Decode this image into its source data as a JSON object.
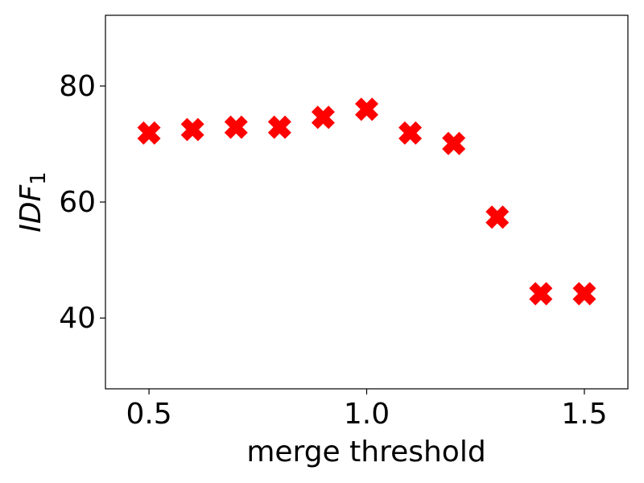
{
  "chart_data": {
    "type": "scatter",
    "xlabel": "merge threshold",
    "ylabel": {
      "text": "IDF",
      "subscript": "1"
    },
    "x": [
      0.5,
      0.6,
      0.7,
      0.8,
      0.9,
      1.0,
      1.1,
      1.2,
      1.3,
      1.4,
      1.5
    ],
    "series": [
      {
        "color": "#ff0000",
        "marker": "X",
        "values": [
          71.9,
          72.5,
          72.9,
          72.9,
          74.6,
          76.0,
          71.9,
          70.1,
          57.4,
          44.2,
          44.2
        ]
      }
    ],
    "xlim": [
      0.4,
      1.6
    ],
    "ylim": [
      27.8,
      92.2
    ],
    "xticks": [
      0.5,
      {
        "value": 1,
        "label": "1.0"
      },
      1.5
    ],
    "yticks": [
      40,
      60,
      80
    ],
    "grid": false
  }
}
